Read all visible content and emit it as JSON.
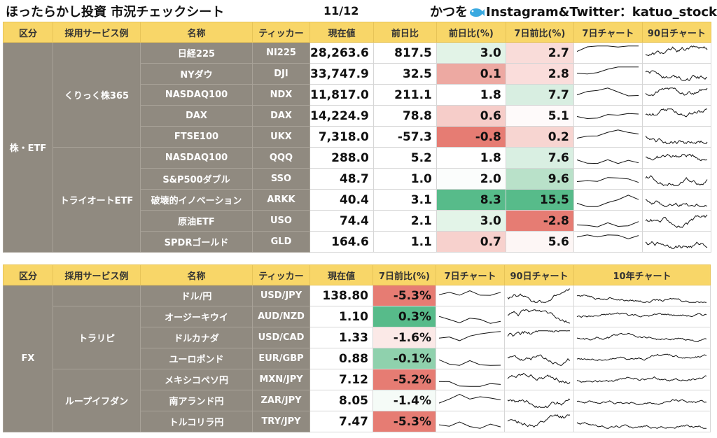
{
  "header": {
    "title": "ほったらかし投資 市況チェックシート",
    "date": "11/12",
    "credit_prefix": "かつを",
    "credit_suffix": "Instagram&Twitter：katuo_stock"
  },
  "stocks": {
    "headers": [
      "区分",
      "採用サービス例",
      "名称",
      "ティッカー",
      "現在値",
      "前日比",
      "前日比(%)",
      "7日前比(%)",
      "7日チャート",
      "90日チャート"
    ],
    "category": "株・ETF",
    "groups": [
      {
        "service": "くりっく株365",
        "rows": [
          0,
          1,
          2,
          3,
          4
        ]
      },
      {
        "service": "トライオートETF",
        "rows": [
          5,
          6,
          7,
          8,
          9
        ]
      }
    ],
    "rows": [
      {
        "name": "日経225",
        "ticker": "NI225",
        "price": "28,263.6",
        "chg": "817.5",
        "chg_pct": "3.0",
        "w_pct": "2.7"
      },
      {
        "name": "NYダウ",
        "ticker": "DJI",
        "price": "33,747.9",
        "chg": "32.5",
        "chg_pct": "0.1",
        "w_pct": "2.8"
      },
      {
        "name": "NASDAQ100",
        "ticker": "NDX",
        "price": "11,817.0",
        "chg": "211.1",
        "chg_pct": "1.8",
        "w_pct": "7.7"
      },
      {
        "name": "DAX",
        "ticker": "DAX",
        "price": "14,224.9",
        "chg": "78.8",
        "chg_pct": "0.6",
        "w_pct": "5.1"
      },
      {
        "name": "FTSE100",
        "ticker": "UKX",
        "price": "7,318.0",
        "chg": "-57.3",
        "chg_pct": "-0.8",
        "w_pct": "0.2"
      },
      {
        "name": "NASDAQ100",
        "ticker": "QQQ",
        "price": "288.0",
        "chg": "5.2",
        "chg_pct": "1.8",
        "w_pct": "7.6"
      },
      {
        "name": "S&P500ダブル",
        "ticker": "SSO",
        "price": "48.7",
        "chg": "1.0",
        "chg_pct": "2.0",
        "w_pct": "9.6"
      },
      {
        "name": "破壊的イノベーション",
        "ticker": "ARKK",
        "price": "40.4",
        "chg": "3.1",
        "chg_pct": "8.3",
        "w_pct": "15.5"
      },
      {
        "name": "原油ETF",
        "ticker": "USO",
        "price": "74.4",
        "chg": "2.1",
        "chg_pct": "3.0",
        "w_pct": "-2.8"
      },
      {
        "name": "SPDRゴールド",
        "ticker": "GLD",
        "price": "164.6",
        "chg": "1.1",
        "chg_pct": "0.7",
        "w_pct": "5.6"
      }
    ],
    "colors": {
      "chg_pct": [
        "#e2f3e7",
        "#eda9a2",
        "#ffffff",
        "#f6cdc9",
        "#e67c73",
        "#ffffff",
        "#fbfdfc",
        "#57bb8a",
        "#e3f4e8",
        "#f7d1cd"
      ],
      "w_pct": [
        "#f9dcd9",
        "#fadddb",
        "#d8eee1",
        "#fefafa",
        "#f7d5d1",
        "#d9efe2",
        "#b9e1c9",
        "#57bb8a",
        "#e67c73",
        "#fdf6f5"
      ]
    }
  },
  "fx": {
    "headers": [
      "区分",
      "採用サービス例",
      "名称",
      "ティッカー",
      "現在値",
      "7日前比(%)",
      "7日チャート",
      "90日チャート",
      "10年チャート"
    ],
    "category": "FX",
    "groups": [
      {
        "service": "",
        "rows": [
          0
        ]
      },
      {
        "service": "トラリピ",
        "rows": [
          1,
          2,
          3
        ]
      },
      {
        "service": "ループイフダン",
        "rows": [
          4,
          5,
          6
        ]
      }
    ],
    "rows": [
      {
        "name": "ドル/円",
        "ticker": "USD/JPY",
        "price": "138.80",
        "w_pct": "-5.3%"
      },
      {
        "name": "オージーキウイ",
        "ticker": "AUD/NZD",
        "price": "1.10",
        "w_pct": "0.3%"
      },
      {
        "name": "ドルカナダ",
        "ticker": "USD/CAD",
        "price": "1.33",
        "w_pct": "-1.6%"
      },
      {
        "name": "ユーロポンド",
        "ticker": "EUR/GBP",
        "price": "0.88",
        "w_pct": "-0.1%"
      },
      {
        "name": "メキシコペソ円",
        "ticker": "MXN/JPY",
        "price": "7.12",
        "w_pct": "-5.2%"
      },
      {
        "name": "南アランド円",
        "ticker": "ZAR/JPY",
        "price": "8.05",
        "w_pct": "-1.4%"
      },
      {
        "name": "トルコリラ円",
        "ticker": "TRY/JPY",
        "price": "7.47",
        "w_pct": "-5.3%"
      }
    ],
    "colors": {
      "w_pct": [
        "#e67c73",
        "#57bb8a",
        "#fbe9e7",
        "#8fd1ad",
        "#e67c73",
        "#f5fbf7",
        "#e67c73"
      ]
    }
  }
}
